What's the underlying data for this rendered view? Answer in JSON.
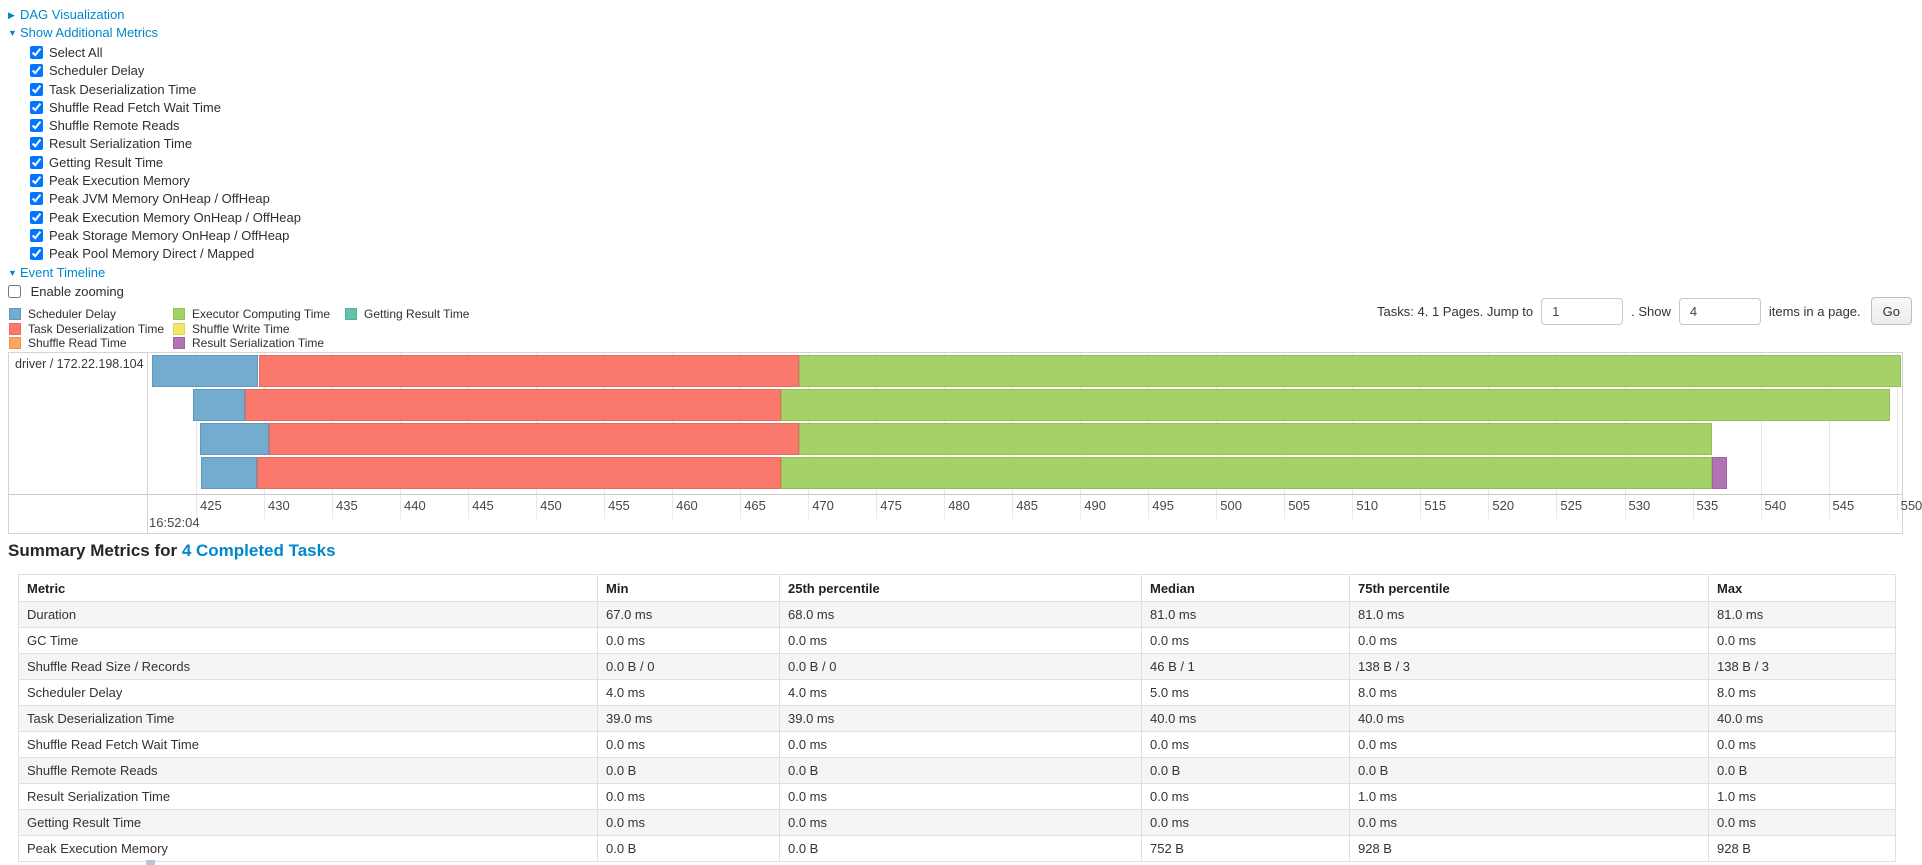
{
  "colors": {
    "link": "#0088cc",
    "metrics": {
      "scheduler-delay": {
        "fill": "#74ACCF",
        "border": "#5E99BE"
      },
      "task-deserialization": {
        "fill": "#FB796C",
        "border": "#E76A5F"
      },
      "shuffle-read": {
        "fill": "#FBA65C",
        "border": "#E89450"
      },
      "executor-computing": {
        "fill": "#A5D268",
        "border": "#93C155"
      },
      "shuffle-write": {
        "fill": "#F3E862",
        "border": "#DFD453"
      },
      "result-serialization": {
        "fill": "#B273B5",
        "border": "#9F62A2"
      },
      "getting-result": {
        "fill": "#65C3AC",
        "border": "#55B09A"
      }
    }
  },
  "icons": {
    "collapsed": "▶",
    "expanded": "▼"
  },
  "controls": {
    "dag": {
      "label": "DAG Visualization"
    },
    "metrics": {
      "label": "Show Additional Metrics",
      "items": [
        {
          "label": "Select All",
          "checked": true
        },
        {
          "label": "Scheduler Delay",
          "checked": true
        },
        {
          "label": "Task Deserialization Time",
          "checked": true
        },
        {
          "label": "Shuffle Read Fetch Wait Time",
          "checked": true
        },
        {
          "label": "Shuffle Remote Reads",
          "checked": true
        },
        {
          "label": "Result Serialization Time",
          "checked": true
        },
        {
          "label": "Getting Result Time",
          "checked": true
        },
        {
          "label": "Peak Execution Memory",
          "checked": true
        },
        {
          "label": "Peak JVM Memory OnHeap / OffHeap",
          "checked": true
        },
        {
          "label": "Peak Execution Memory OnHeap / OffHeap",
          "checked": true
        },
        {
          "label": "Peak Storage Memory OnHeap / OffHeap",
          "checked": true
        },
        {
          "label": "Peak Pool Memory Direct / Mapped",
          "checked": true
        }
      ]
    },
    "timeline": {
      "label": "Event Timeline",
      "enable_zooming": "Enable zooming",
      "enable_zooming_checked": false
    }
  },
  "legend": {
    "columns": [
      [
        {
          "key": "scheduler-delay",
          "label": "Scheduler Delay"
        },
        {
          "key": "task-deserialization",
          "label": "Task Deserialization Time"
        },
        {
          "key": "shuffle-read",
          "label": "Shuffle Read Time"
        }
      ],
      [
        {
          "key": "executor-computing",
          "label": "Executor Computing Time"
        },
        {
          "key": "shuffle-write",
          "label": "Shuffle Write Time"
        },
        {
          "key": "result-serialization",
          "label": "Result Serialization Time"
        }
      ],
      [
        {
          "key": "getting-result",
          "label": "Getting Result Time"
        }
      ]
    ]
  },
  "pagination": {
    "info": "Tasks: 4. 1 Pages. Jump to",
    "jump_value": "1",
    "mid": ". Show",
    "show_value": "4",
    "suffix": "items in a page.",
    "go": "Go"
  },
  "chart_data": {
    "type": "timeline",
    "group_label": "driver / 172.22.198.104",
    "x_axis": {
      "major_label": "16:52:04",
      "unit": "milliseconds within second 16:52:04",
      "min": 421.4,
      "max": 550.4,
      "ticks": [
        425,
        430,
        435,
        440,
        445,
        450,
        455,
        460,
        465,
        470,
        475,
        480,
        485,
        490,
        495,
        500,
        505,
        510,
        515,
        520,
        525,
        530,
        535,
        540,
        545,
        550
      ]
    },
    "bars": [
      {
        "task": 1,
        "segments": [
          {
            "metric": "scheduler-delay",
            "from": 421.8,
            "to": 429.6
          },
          {
            "metric": "task-deserialization",
            "from": 429.6,
            "to": 469.3
          },
          {
            "metric": "executor-computing",
            "from": 469.3,
            "to": 550.3
          }
        ]
      },
      {
        "task": 2,
        "segments": [
          {
            "metric": "scheduler-delay",
            "from": 424.8,
            "to": 428.6
          },
          {
            "metric": "task-deserialization",
            "from": 428.6,
            "to": 468.0
          },
          {
            "metric": "executor-computing",
            "from": 468.0,
            "to": 549.5
          }
        ]
      },
      {
        "task": 3,
        "segments": [
          {
            "metric": "scheduler-delay",
            "from": 425.3,
            "to": 430.4
          },
          {
            "metric": "task-deserialization",
            "from": 430.4,
            "to": 469.3
          },
          {
            "metric": "executor-computing",
            "from": 469.3,
            "to": 536.4
          }
        ]
      },
      {
        "task": 4,
        "segments": [
          {
            "metric": "scheduler-delay",
            "from": 425.4,
            "to": 429.5
          },
          {
            "metric": "task-deserialization",
            "from": 429.5,
            "to": 468.0
          },
          {
            "metric": "executor-computing",
            "from": 468.0,
            "to": 536.4
          },
          {
            "metric": "result-serialization",
            "from": 536.4,
            "to": 537.5
          }
        ]
      }
    ]
  },
  "summary": {
    "title_prefix": "Summary Metrics for ",
    "title_link": "4 Completed Tasks",
    "table": {
      "headers": [
        "Metric",
        "Min",
        "25th percentile",
        "Median",
        "75th percentile",
        "Max"
      ],
      "rows": [
        [
          "Duration",
          "67.0 ms",
          "68.0 ms",
          "81.0 ms",
          "81.0 ms",
          "81.0 ms"
        ],
        [
          "GC Time",
          "0.0 ms",
          "0.0 ms",
          "0.0 ms",
          "0.0 ms",
          "0.0 ms"
        ],
        [
          "Shuffle Read Size / Records",
          "0.0 B / 0",
          "0.0 B / 0",
          "46 B / 1",
          "138 B / 3",
          "138 B / 3"
        ],
        [
          "Scheduler Delay",
          "4.0 ms",
          "4.0 ms",
          "5.0 ms",
          "8.0 ms",
          "8.0 ms"
        ],
        [
          "Task Deserialization Time",
          "39.0 ms",
          "39.0 ms",
          "40.0 ms",
          "40.0 ms",
          "40.0 ms"
        ],
        [
          "Shuffle Read Fetch Wait Time",
          "0.0 ms",
          "0.0 ms",
          "0.0 ms",
          "0.0 ms",
          "0.0 ms"
        ],
        [
          "Shuffle Remote Reads",
          "0.0 B",
          "0.0 B",
          "0.0 B",
          "0.0 B",
          "0.0 B"
        ],
        [
          "Result Serialization Time",
          "0.0 ms",
          "0.0 ms",
          "0.0 ms",
          "1.0 ms",
          "1.0 ms"
        ],
        [
          "Getting Result Time",
          "0.0 ms",
          "0.0 ms",
          "0.0 ms",
          "0.0 ms",
          "0.0 ms"
        ],
        [
          "Peak Execution Memory",
          "0.0 B",
          "0.0 B",
          "752 B",
          "928 B",
          "928 B"
        ]
      ]
    }
  }
}
